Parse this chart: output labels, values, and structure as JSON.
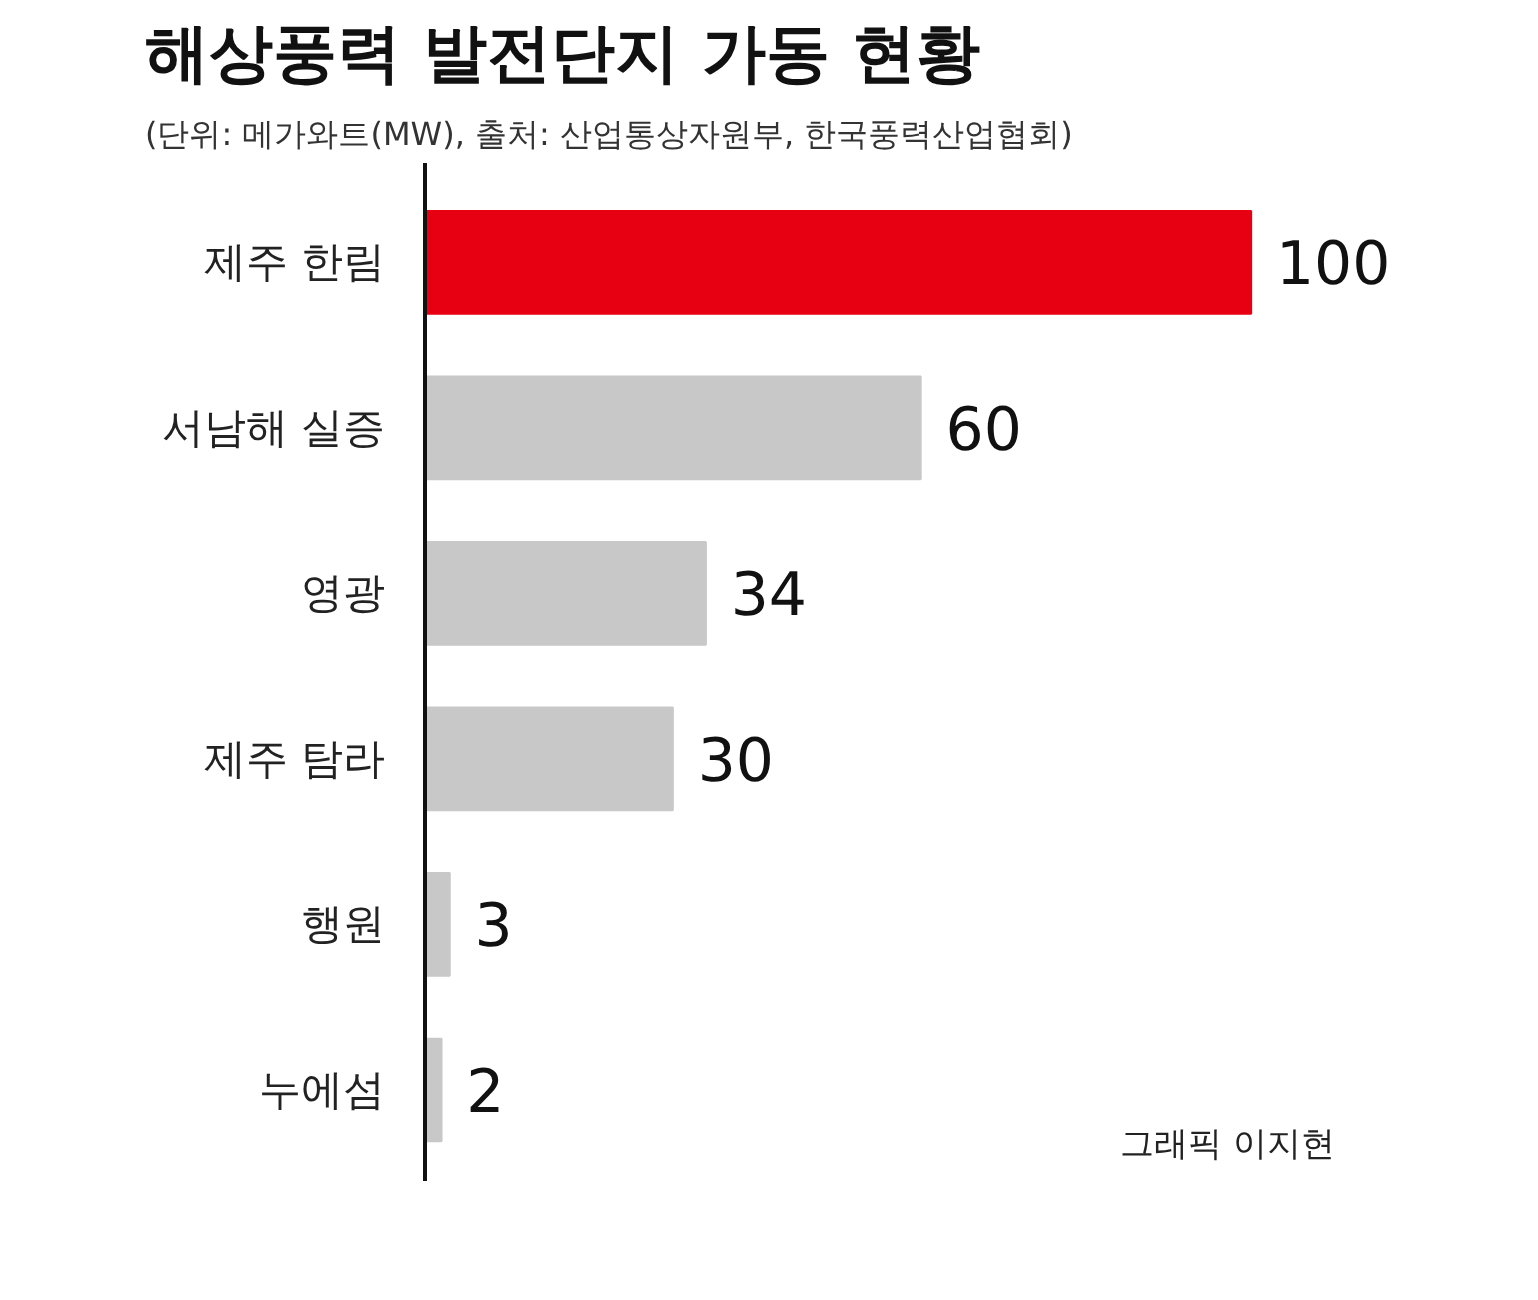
{
  "chart_data": {
    "type": "bar",
    "orientation": "horizontal",
    "title": "해상풍력 발전단지 가동 현황",
    "subtitle": "(단위: 메가와트(MW), 출처: 산업통상자원부, 한국풍력산업협회)",
    "categories": [
      "제주 한림",
      "서남해 실증",
      "영광",
      "제주 탐라",
      "행원",
      "누에섬"
    ],
    "values": [
      100,
      60,
      34,
      30,
      3,
      2
    ],
    "colors": [
      "#e60012",
      "#c8c8c8",
      "#c8c8c8",
      "#c8c8c8",
      "#c8c8c8",
      "#c8c8c8"
    ],
    "xlim": [
      0,
      100
    ],
    "data_labels": true,
    "tick_labels": "y",
    "grid": false,
    "annotations": [
      "그래픽 이지현"
    ]
  }
}
